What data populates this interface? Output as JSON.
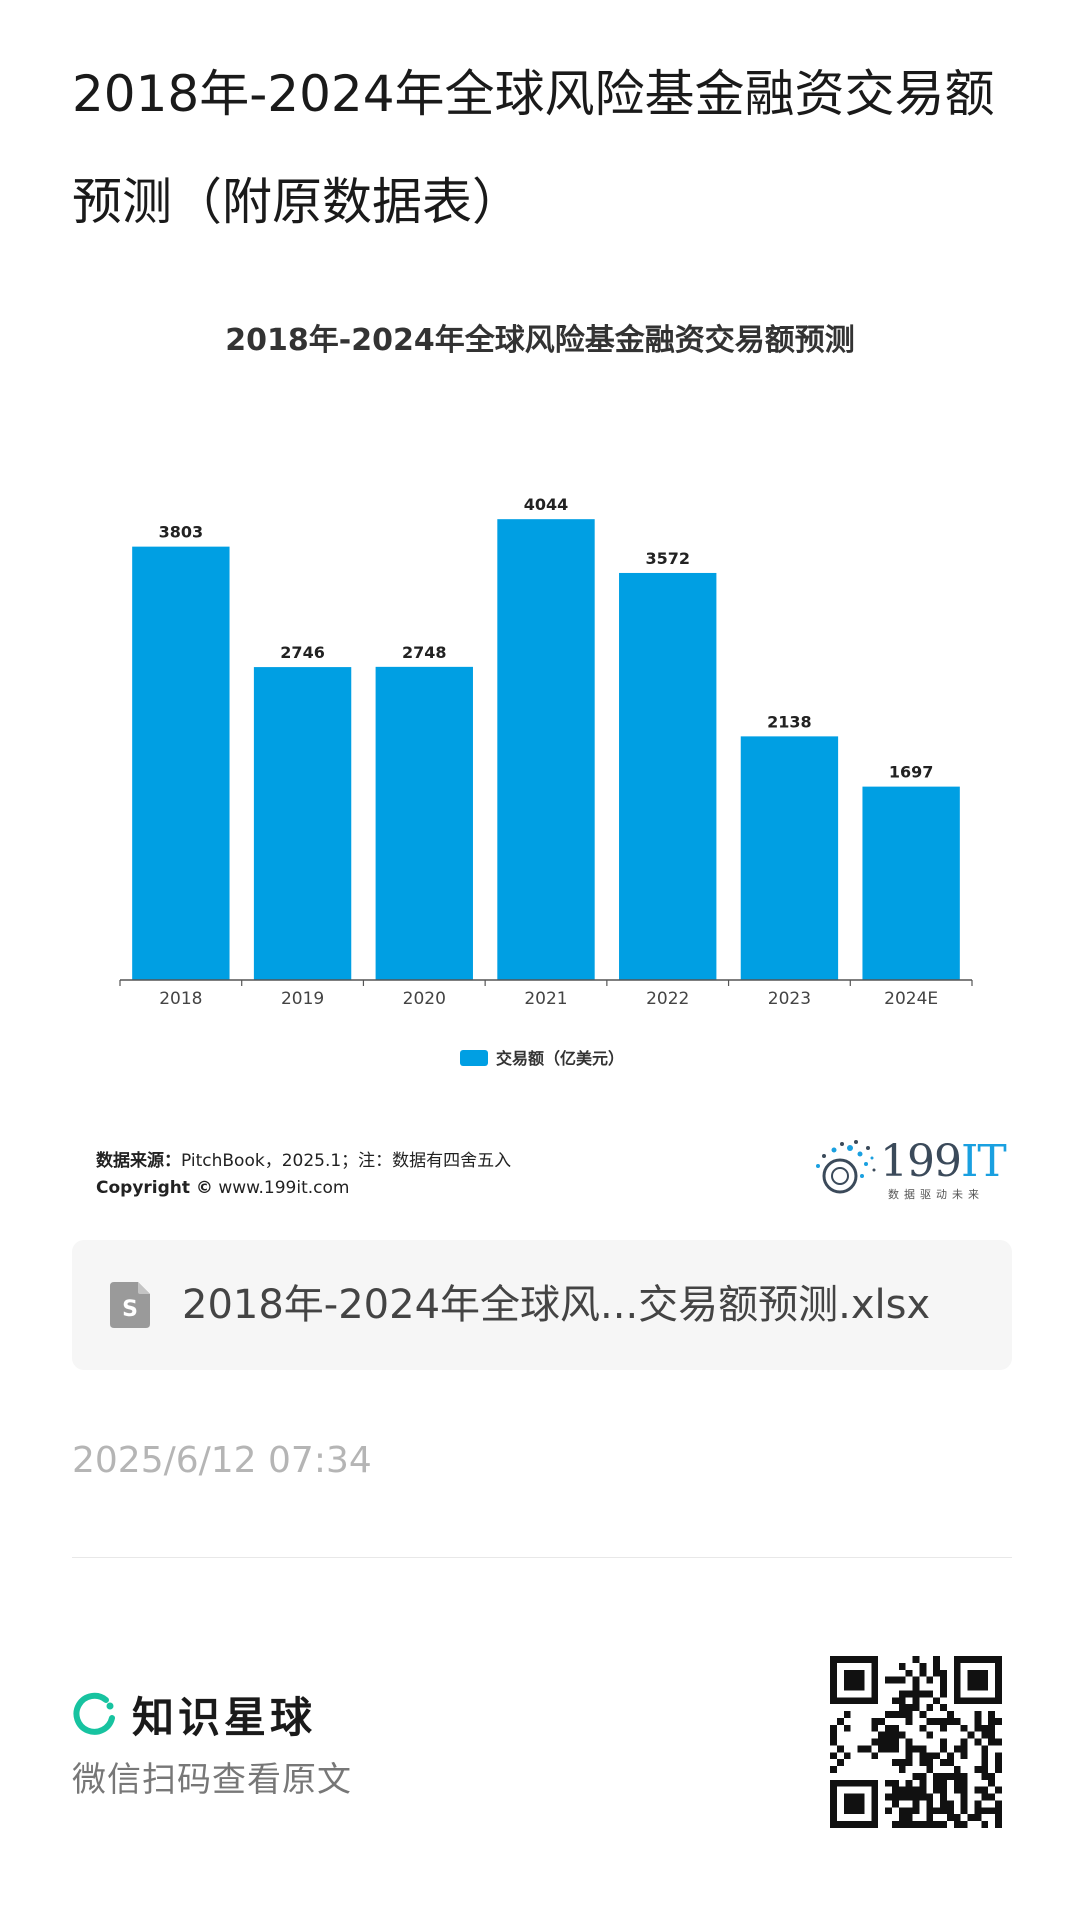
{
  "page": {
    "title": "2018年-2024年全球风险基金融资交易额预测（附原数据表）"
  },
  "chart_data": {
    "type": "bar",
    "title": "2018年-2024年全球风险基金融资交易额预测",
    "categories": [
      "2018",
      "2019",
      "2020",
      "2021",
      "2022",
      "2023",
      "2024E"
    ],
    "series": [
      {
        "name": "交易额（亿美元）",
        "values": [
          3803,
          2746,
          2748,
          4044,
          3572,
          2138,
          1697
        ],
        "data_labels": [
          "3803",
          "2746",
          "2748",
          "4044",
          "3572",
          "2138",
          "1697"
        ]
      }
    ],
    "ylim": [
      0,
      4300
    ],
    "grid": false,
    "legend_position": "bottom",
    "bar_color": "#009fe3"
  },
  "source": {
    "label": "数据来源：",
    "text": "PitchBook，2025.1；注：数据有四舍五入",
    "copyright_label": "Copyright ©",
    "copyright_url": "www.199it.com"
  },
  "logo": {
    "text_num": "199",
    "text_it": "IT",
    "tagline": "数据驱动未来"
  },
  "file": {
    "name": "2018年-2024年全球风...交易额预测.xlsx",
    "icon": "spreadsheet-file-icon"
  },
  "meta": {
    "timestamp": "2025/6/12 07:34"
  },
  "footer": {
    "brand_name": "知识星球",
    "brand_icon": "planet-ring-icon",
    "scan_text": "微信扫码查看原文",
    "qr_icon": "qr-code-icon"
  }
}
